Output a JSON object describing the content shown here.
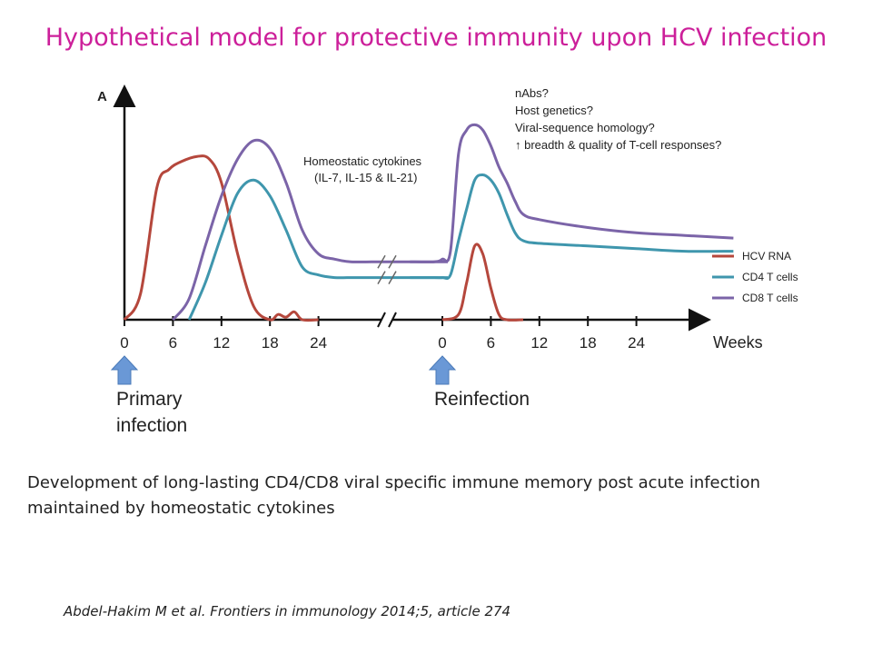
{
  "slide": {
    "title": "Hypothetical model for protective immunity upon HCV infection",
    "caption_line1": "Development of long-lasting CD4/CD8 viral specific immune memory post acute infection",
    "caption_line2": "maintained by homeostatic cytokines",
    "citation": "Abdel-Hakim M et al. Frontiers in immunology 2014;5, article 274"
  },
  "chart_data": {
    "type": "line",
    "ylabel": "A",
    "xlabel": "Weeks",
    "x_ticks_primary": [
      "0",
      "6",
      "12",
      "18",
      "24"
    ],
    "x_ticks_reinfection": [
      "0",
      "6",
      "12",
      "18",
      "24"
    ],
    "axis_break": true,
    "units": "relative magnitude (0-100, estimated)",
    "series": [
      {
        "name": "HCV RNA",
        "color": "#b5473c",
        "primary": {
          "x": [
            0,
            2,
            4,
            5.5,
            7,
            9,
            10.5,
            12,
            14,
            16,
            18,
            19,
            20,
            21,
            22,
            24
          ],
          "y": [
            0,
            10,
            50,
            57,
            60,
            62,
            61,
            52,
            25,
            5,
            0,
            2,
            1,
            3,
            0,
            0
          ]
        },
        "reinfection": {
          "x": [
            0,
            2,
            3,
            4,
            5,
            6,
            7,
            8,
            10
          ],
          "y": [
            0,
            2,
            14,
            28,
            25,
            12,
            2,
            0,
            0
          ]
        }
      },
      {
        "name": "CD4 T cells",
        "color": "#3f96ad",
        "primary": {
          "x": [
            8,
            10,
            12,
            14,
            16,
            18,
            20,
            22,
            24,
            26,
            28,
            32,
            36,
            40
          ],
          "y": [
            0,
            14,
            32,
            48,
            53,
            47,
            34,
            20,
            17,
            16,
            16,
            16,
            16,
            16
          ]
        },
        "reinfection": {
          "x": [
            -4,
            -1,
            0,
            1,
            2,
            3,
            4,
            5,
            6,
            7,
            8,
            9,
            10,
            12,
            18,
            24,
            30,
            36
          ],
          "y": [
            16,
            16,
            16,
            17,
            30,
            42,
            53,
            55,
            53,
            48,
            40,
            33,
            30,
            29,
            28,
            27,
            26,
            26
          ]
        }
      },
      {
        "name": "CD8 T cells",
        "color": "#7b64a8",
        "primary": {
          "x": [
            6,
            8,
            10,
            12,
            14,
            16,
            18,
            20,
            22,
            24,
            26,
            28,
            32,
            36,
            40
          ],
          "y": [
            0,
            8,
            28,
            47,
            61,
            68,
            65,
            52,
            34,
            25,
            23,
            22,
            22,
            22,
            22
          ]
        },
        "reinfection": {
          "x": [
            -4,
            -1,
            0,
            1,
            2,
            3,
            4,
            5,
            6,
            7,
            8,
            9,
            10,
            12,
            18,
            24,
            30,
            36
          ],
          "y": [
            22,
            22,
            23,
            26,
            63,
            72,
            74,
            72,
            66,
            58,
            52,
            45,
            40,
            38,
            35,
            33,
            32,
            31
          ]
        }
      }
    ],
    "annotations": {
      "cytokines_line1": "Homeostatic cytokines",
      "cytokines_line2": "(IL-7, IL-15 & IL-21)",
      "questions": [
        "nAbs?",
        "Host genetics?",
        "Viral-sequence homology?",
        "↑ breadth & quality of T-cell responses?"
      ]
    },
    "events": [
      {
        "label_line1": "Primary",
        "label_line2": "infection",
        "color": "#6a98d6"
      },
      {
        "label_line1": "Reinfection",
        "label_line2": "",
        "color": "#6a98d6"
      }
    ],
    "legend_position": "right"
  }
}
